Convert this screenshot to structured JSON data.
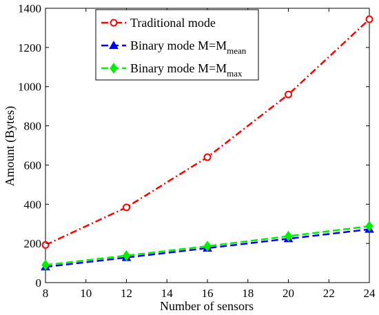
{
  "chart_data": {
    "type": "line",
    "title": "",
    "xlabel": "Number of sensors",
    "ylabel": "Amount (Bytes)",
    "xlim": [
      8,
      24
    ],
    "ylim": [
      0,
      1400
    ],
    "x_ticks": [
      8,
      10,
      12,
      14,
      16,
      18,
      20,
      22,
      24
    ],
    "y_ticks": [
      0,
      200,
      400,
      600,
      800,
      1000,
      1200,
      1400
    ],
    "grid": false,
    "legend_position": "top-center",
    "x": [
      8,
      12,
      16,
      20,
      24
    ],
    "series": [
      {
        "name": "Traditional mode",
        "legend": {
          "text": "Traditional mode",
          "sub": ""
        },
        "values": [
          192,
          384,
          640,
          960,
          1344
        ],
        "color": "#ff0000",
        "line_style": "dash-dot",
        "marker": "circle-open"
      },
      {
        "name": "Binary mode M=Mmean",
        "legend": {
          "text": "Binary mode M=M",
          "sub": "mean"
        },
        "values": [
          80,
          128,
          176,
          224,
          272
        ],
        "color": "#0000ff",
        "line_style": "dashed",
        "marker": "triangle-filled"
      },
      {
        "name": "Binary mode M=Mmax",
        "legend": {
          "text": "Binary mode M=M",
          "sub": "max"
        },
        "values": [
          90,
          138,
          186,
          237,
          288
        ],
        "color": "#00ee00",
        "line_style": "dashed",
        "marker": "diamond-filled"
      }
    ]
  }
}
